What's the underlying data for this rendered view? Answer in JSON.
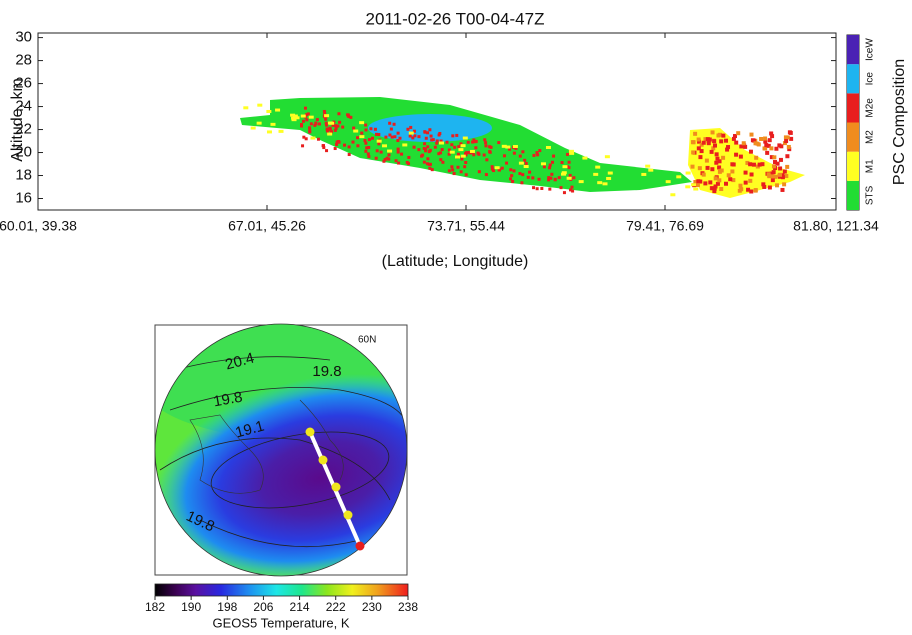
{
  "chart_data": [
    {
      "type": "curtain",
      "title": "2011-02-26  T00-04-47Z",
      "y_label": "Altitude, km",
      "x_label": "(Latitude; Longitude)",
      "x_tick_labels": [
        "60.01, 39.38",
        "67.01, 45.26",
        "73.71, 55.44",
        "79.41, 76.69",
        "81.80, 121.34"
      ],
      "ylim": [
        15,
        30.4
      ],
      "yticks": [
        16,
        18,
        20,
        22,
        24,
        26,
        28,
        30
      ],
      "colorbar": {
        "title": "PSC Composition",
        "categories": [
          "STS",
          "M1",
          "M2",
          "M2e",
          "Ice",
          "IceW"
        ],
        "colors": [
          "#22dd33",
          "#ffff22",
          "#f08c1e",
          "#e81e1e",
          "#1eb4f0",
          "#4a22b4"
        ]
      }
    },
    {
      "type": "map",
      "label": "60N",
      "contour_labels": [
        20.4,
        19.8,
        19.8,
        19.1,
        19.8
      ],
      "colorbar": {
        "label": "GEOS5 Temperature, K",
        "lim": [
          182,
          238
        ],
        "ticks": [
          182,
          190,
          198,
          206,
          214,
          222,
          230,
          238
        ]
      }
    }
  ]
}
